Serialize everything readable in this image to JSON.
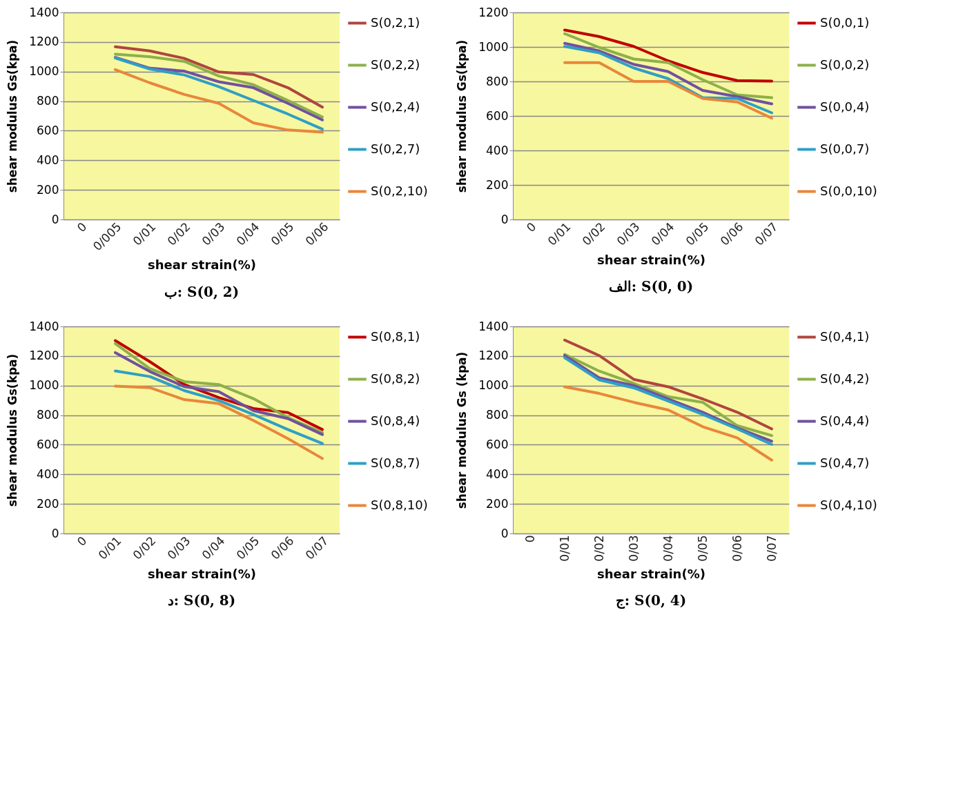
{
  "chart_data": [
    {
      "type": "line",
      "title": "ب: S(0, 2)",
      "xlabel": "shear strain(%)",
      "ylabel": "shear modulus  Gs(kpa)",
      "categories": [
        "0",
        "0/005",
        "0/01",
        "0/02",
        "0/03",
        "0/04",
        "0/05",
        "0/06"
      ],
      "ylim": [
        0,
        1400
      ],
      "yticks": [
        0,
        200,
        400,
        600,
        800,
        1000,
        1200,
        1400
      ],
      "grid": "y",
      "legend": "right",
      "series": [
        {
          "name": "S(0,2,1)",
          "color": "#b0453f",
          "values": [
            null,
            1168,
            1140,
            1089,
            997,
            980,
            891,
            759
          ]
        },
        {
          "name": "S(0,2,2)",
          "color": "#8db04a",
          "values": [
            null,
            1118,
            1100,
            1069,
            970,
            911,
            805,
            693
          ]
        },
        {
          "name": "S(0,2,4)",
          "color": "#6f51a0",
          "values": [
            null,
            1096,
            1023,
            1003,
            931,
            891,
            785,
            673
          ]
        },
        {
          "name": "S(0,2,7)",
          "color": "#2f9fc6",
          "values": [
            null,
            1092,
            1017,
            977,
            898,
            805,
            713,
            611
          ]
        },
        {
          "name": "S(0,2,10)",
          "color": "#e8873a",
          "values": [
            null,
            1013,
            924,
            845,
            785,
            653,
            605,
            590
          ]
        }
      ]
    },
    {
      "type": "line",
      "title": "الف: S(0, 0)",
      "xlabel": "shear strain(%)",
      "ylabel": "shear modulus  Gs(kpa)",
      "categories": [
        "0",
        "0/01",
        "0/02",
        "0/03",
        "0/04",
        "0/05",
        "0/06",
        "0/07"
      ],
      "ylim": [
        0,
        1200
      ],
      "yticks": [
        0,
        200,
        400,
        600,
        800,
        1000,
        1200
      ],
      "grid": "y",
      "legend": "right",
      "series": [
        {
          "name": "S(0,0,1)",
          "color": "#c00000",
          "values": [
            null,
            1098,
            1060,
            1003,
            919,
            852,
            805,
            802
          ]
        },
        {
          "name": "S(0,0,2)",
          "color": "#8db04a",
          "values": [
            null,
            1077,
            997,
            930,
            909,
            810,
            722,
            706
          ]
        },
        {
          "name": "S(0,0,4)",
          "color": "#6f51a0",
          "values": [
            null,
            1021,
            977,
            899,
            857,
            748,
            712,
            670
          ]
        },
        {
          "name": "S(0,0,7)",
          "color": "#2f9fc6",
          "values": [
            null,
            1003,
            966,
            878,
            816,
            706,
            701,
            618
          ]
        },
        {
          "name": "S(0,0,10)",
          "color": "#e8873a",
          "values": [
            null,
            909,
            909,
            800,
            800,
            701,
            681,
            587
          ]
        }
      ]
    },
    {
      "type": "line",
      "title": "د: S(0, 8)",
      "xlabel": "shear strain(%)",
      "ylabel": "shear modulus  Gs(kpa)",
      "categories": [
        "0",
        "0/01",
        "0/02",
        "0/03",
        "0/04",
        "0/05",
        "0/06",
        "0/07"
      ],
      "ylim": [
        0,
        1400
      ],
      "yticks": [
        0,
        200,
        400,
        600,
        800,
        1000,
        1200,
        1400
      ],
      "grid": "y",
      "legend": "right",
      "series": [
        {
          "name": "S(0,8,1)",
          "color": "#c00000",
          "values": [
            null,
            1304,
            1162,
            1007,
            919,
            845,
            818,
            703
          ]
        },
        {
          "name": "S(0,8,2)",
          "color": "#8db04a",
          "values": [
            null,
            1284,
            1115,
            1027,
            1007,
            912,
            784,
            682
          ]
        },
        {
          "name": "S(0,8,4)",
          "color": "#6f51a0",
          "values": [
            null,
            1223,
            1095,
            993,
            959,
            831,
            777,
            669
          ]
        },
        {
          "name": "S(0,8,7)",
          "color": "#2f9fc6",
          "values": [
            null,
            1099,
            1061,
            966,
            899,
            804,
            703,
            608
          ]
        },
        {
          "name": "S(0,8,10)",
          "color": "#e8873a",
          "values": [
            null,
            996,
            986,
            905,
            878,
            764,
            642,
            507
          ]
        }
      ]
    },
    {
      "type": "line",
      "title": "ج: S(0, 4)",
      "xlabel": "shear strain(%)",
      "ylabel": "shear modulus Gs (kpa)",
      "categories": [
        "0",
        "0/01",
        "0/02",
        "0/03",
        "0/04",
        "0/05",
        "0/06",
        "0/07"
      ],
      "ylim": [
        0,
        1400
      ],
      "yticks": [
        0,
        200,
        400,
        600,
        800,
        1000,
        1200,
        1400
      ],
      "grid": "y",
      "legend": "right",
      "series": [
        {
          "name": "S(0,4,1)",
          "color": "#b0453f",
          "values": [
            null,
            1308,
            1203,
            1042,
            992,
            910,
            820,
            707
          ]
        },
        {
          "name": "S(0,4,2)",
          "color": "#8db04a",
          "values": [
            null,
            1211,
            1098,
            1015,
            925,
            887,
            729,
            662
          ]
        },
        {
          "name": "S(0,4,4)",
          "color": "#6f51a0",
          "values": [
            null,
            1203,
            1053,
            1000,
            910,
            820,
            714,
            624
          ]
        },
        {
          "name": "S(0,4,7)",
          "color": "#2f9fc6",
          "values": [
            null,
            1188,
            1038,
            985,
            895,
            805,
            707,
            602
          ]
        },
        {
          "name": "S(0,4,10)",
          "color": "#e8873a",
          "values": [
            null,
            992,
            947,
            887,
            835,
            722,
            647,
            496
          ]
        }
      ]
    }
  ]
}
